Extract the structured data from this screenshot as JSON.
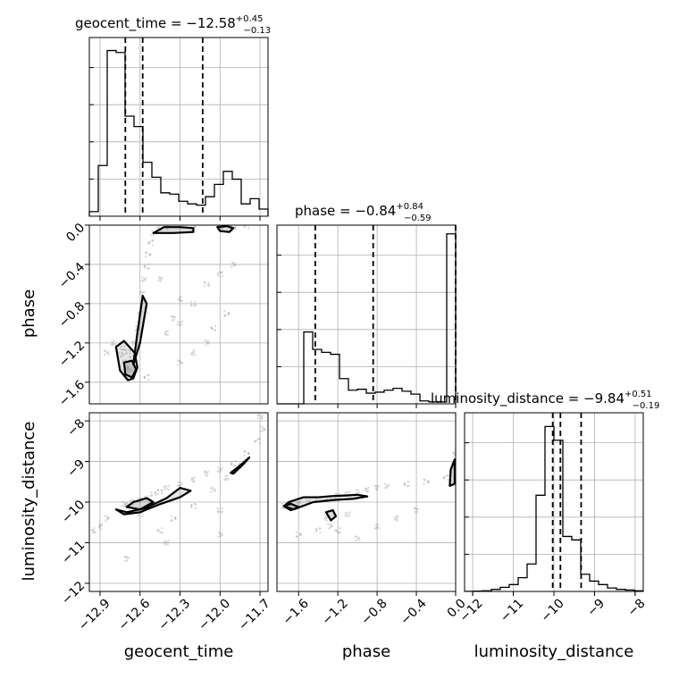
{
  "chart_data": {
    "type": "corner",
    "params": [
      {
        "name": "geocent_time",
        "label": "geocent_time",
        "title": "geocent_time = −12.58",
        "median": -12.58,
        "plus": "+0.45",
        "minus": "−0.13",
        "quantiles": [
          -12.71,
          -12.58,
          -12.13
        ],
        "range": [
          -12.98,
          -11.64
        ],
        "ticks": [
          -12.9,
          -12.6,
          -12.3,
          -12.0,
          -11.7
        ],
        "tick_labels": [
          "−12.9",
          "−12.6",
          "−12.3",
          "−12.0",
          "−11.7"
        ],
        "hist_edges": [
          -12.98,
          -12.913,
          -12.846,
          -12.779,
          -12.712,
          -12.645,
          -12.578,
          -12.511,
          -12.444,
          -12.377,
          -12.31,
          -12.243,
          -12.176,
          -12.109,
          -12.042,
          -11.975,
          -11.908,
          -11.841,
          -11.774,
          -11.707,
          -11.64
        ],
        "hist_counts": [
          0.7,
          7.8,
          25.5,
          25.2,
          15.4,
          13.8,
          8.3,
          6.0,
          3.6,
          3.4,
          2.3,
          1.9,
          1.7,
          3.0,
          4.9,
          6.9,
          5.7,
          1.9,
          2.7,
          1.1
        ],
        "hist_ymax": 27.5
      },
      {
        "name": "phase",
        "label": "phase",
        "title": "phase = −0.84",
        "median": -0.84,
        "plus": "+0.84",
        "minus": "−0.59",
        "quantiles": [
          -1.43,
          -0.84,
          0.0
        ],
        "range": [
          -1.82,
          0.0
        ],
        "ticks": [
          -1.6,
          -1.2,
          -0.8,
          -0.4,
          0.0
        ],
        "tick_labels": [
          "−1.6",
          "−1.2",
          "−0.8",
          "−0.4",
          "0.0"
        ],
        "hist_edges": [
          -1.82,
          -1.729,
          -1.638,
          -1.547,
          -1.456,
          -1.365,
          -1.274,
          -1.183,
          -1.092,
          -1.001,
          -0.91,
          -0.819,
          -0.728,
          -0.637,
          -0.546,
          -0.455,
          -0.364,
          -0.273,
          -0.182,
          -0.091,
          0.0
        ],
        "hist_counts": [
          0,
          0,
          0,
          7.4,
          5.6,
          5.3,
          5.1,
          2.6,
          1.4,
          1.5,
          1.1,
          1.2,
          1.4,
          1.6,
          1.3,
          1.0,
          0.3,
          0.2,
          0.2,
          17.5
        ],
        "hist_ymax": 18.4
      },
      {
        "name": "luminosity_distance",
        "label": "luminosity_distance",
        "title": "luminosity_distance = −9.84",
        "median": -9.84,
        "plus": "+0.51",
        "minus": "−0.19",
        "quantiles": [
          -10.03,
          -9.84,
          -9.33
        ],
        "range": [
          -12.2,
          -7.8
        ],
        "ticks": [
          -12,
          -11,
          -10,
          -9,
          -8
        ],
        "tick_labels": [
          "−12",
          "−11",
          "−10",
          "−9",
          "−8"
        ],
        "hist_edges": [
          -12.2,
          -11.98,
          -11.76,
          -11.54,
          -11.32,
          -11.1,
          -10.88,
          -10.66,
          -10.44,
          -10.22,
          -10.0,
          -9.78,
          -9.56,
          -9.34,
          -9.12,
          -8.9,
          -8.68,
          -8.46,
          -8.24,
          -8.02,
          -7.8
        ],
        "hist_counts": [
          0.02,
          0.05,
          0.1,
          0.3,
          0.6,
          1.0,
          2.0,
          4.0,
          14.0,
          24.0,
          22.0,
          8.0,
          7.5,
          2.5,
          1.5,
          1.0,
          0.5,
          0.3,
          0.2,
          0.1
        ],
        "hist_ymax": 26
      }
    ],
    "pairs": [
      {
        "x": "geocent_time",
        "y": "phase",
        "samples": [
          [
            -12.68,
            -1.47
          ],
          [
            -12.7,
            -1.45
          ],
          [
            -12.72,
            -1.4
          ],
          [
            -12.74,
            -1.32
          ],
          [
            -12.73,
            -1.25
          ],
          [
            -12.69,
            -1.29
          ],
          [
            -12.66,
            -1.36
          ],
          [
            -12.64,
            -1.2
          ],
          [
            -12.62,
            -1.05
          ],
          [
            -12.6,
            -0.9
          ],
          [
            -12.58,
            -0.7
          ],
          [
            -12.57,
            -0.55
          ],
          [
            -12.55,
            -0.42
          ],
          [
            -12.54,
            -0.3
          ],
          [
            -12.52,
            -0.18
          ],
          [
            -12.5,
            -0.08
          ],
          [
            -12.46,
            -0.03
          ],
          [
            -12.4,
            -0.02
          ],
          [
            -12.2,
            -0.02
          ],
          [
            -12.0,
            -0.01
          ],
          [
            -11.9,
            -0.03
          ],
          [
            -11.8,
            -0.01
          ],
          [
            -12.85,
            -1.3
          ],
          [
            -12.8,
            -1.2
          ],
          [
            -12.4,
            -1.1
          ],
          [
            -12.35,
            -0.95
          ],
          [
            -12.3,
            -1.0
          ],
          [
            -12.2,
            -0.8
          ],
          [
            -12.1,
            -0.6
          ],
          [
            -12.0,
            -0.5
          ],
          [
            -11.9,
            -0.4
          ],
          [
            -12.3,
            -0.75
          ],
          [
            -12.45,
            -0.55
          ],
          [
            -12.1,
            -1.2
          ],
          [
            -12.05,
            -1.05
          ],
          [
            -11.95,
            -0.9
          ],
          [
            -12.55,
            -1.55
          ],
          [
            -12.3,
            -1.4
          ],
          [
            -12.2,
            -1.3
          ]
        ],
        "contours": [
          {
            "x": [
              -12.78,
              -12.72,
              -12.64,
              -12.62,
              -12.65,
              -12.69,
              -12.75,
              -12.78
            ],
            "y": [
              -1.24,
              -1.18,
              -1.3,
              -1.45,
              -1.56,
              -1.58,
              -1.48,
              -1.24
            ]
          },
          {
            "x": [
              -12.72,
              -12.66,
              -12.63,
              -12.66,
              -12.71
            ],
            "y": [
              -1.4,
              -1.38,
              -1.47,
              -1.55,
              -1.52
            ]
          },
          {
            "x": [
              -12.65,
              -12.62,
              -12.58,
              -12.55,
              -12.6,
              -12.65
            ],
            "y": [
              -1.42,
              -1.1,
              -0.72,
              -0.8,
              -1.2,
              -1.42
            ]
          },
          {
            "x": [
              -12.5,
              -12.42,
              -12.3,
              -12.2,
              -12.2,
              -12.35,
              -12.5
            ],
            "y": [
              -0.08,
              -0.02,
              -0.02,
              -0.03,
              -0.07,
              -0.08,
              -0.08
            ]
          },
          {
            "x": [
              -12.02,
              -11.95,
              -11.9,
              -11.93,
              -12.0,
              -12.02
            ],
            "y": [
              -0.02,
              -0.01,
              -0.03,
              -0.07,
              -0.06,
              -0.02
            ]
          }
        ]
      },
      {
        "x": "geocent_time",
        "y": "luminosity_distance",
        "samples": [
          [
            -12.72,
            -10.05
          ],
          [
            -12.7,
            -10.08
          ],
          [
            -12.66,
            -10.0
          ],
          [
            -12.6,
            -9.95
          ],
          [
            -12.55,
            -9.9
          ],
          [
            -12.5,
            -9.8
          ],
          [
            -12.45,
            -9.75
          ],
          [
            -12.4,
            -9.65
          ],
          [
            -12.3,
            -9.55
          ],
          [
            -12.2,
            -9.45
          ],
          [
            -12.1,
            -9.3
          ],
          [
            -12.0,
            -9.2
          ],
          [
            -11.9,
            -9.05
          ],
          [
            -11.8,
            -8.8
          ],
          [
            -11.72,
            -8.5
          ],
          [
            -11.68,
            -8.2
          ],
          [
            -12.95,
            -10.7
          ],
          [
            -12.9,
            -10.6
          ],
          [
            -12.85,
            -10.4
          ],
          [
            -12.45,
            -10.7
          ],
          [
            -12.35,
            -10.4
          ],
          [
            -12.2,
            -10.1
          ],
          [
            -12.05,
            -9.7
          ],
          [
            -11.95,
            -9.4
          ],
          [
            -11.85,
            -9.1
          ],
          [
            -12.7,
            -11.4
          ],
          [
            -12.4,
            -11.0
          ],
          [
            -12.0,
            -10.2
          ],
          [
            -11.7,
            -7.9
          ],
          [
            -12.6,
            -10.3
          ],
          [
            -12.0,
            -10.8
          ]
        ],
        "contours": [
          {
            "x": [
              -12.78,
              -12.7,
              -12.56,
              -12.4,
              -12.3,
              -12.22,
              -12.3,
              -12.45,
              -12.6,
              -12.72,
              -12.78
            ],
            "y": [
              -10.18,
              -10.25,
              -10.15,
              -9.9,
              -9.65,
              -9.72,
              -9.88,
              -10.05,
              -10.25,
              -10.3,
              -10.18
            ]
          },
          {
            "x": [
              -12.7,
              -12.6,
              -12.5,
              -12.55,
              -12.65,
              -12.7
            ],
            "y": [
              -10.12,
              -10.18,
              -10.0,
              -9.9,
              -10.0,
              -10.12
            ]
          },
          {
            "x": [
              -11.9,
              -11.82,
              -11.78,
              -11.85,
              -11.92,
              -11.9
            ],
            "y": [
              -9.3,
              -9.05,
              -8.9,
              -9.1,
              -9.28,
              -9.3
            ]
          }
        ]
      },
      {
        "x": "phase",
        "y": "luminosity_distance",
        "samples": [
          [
            -1.75,
            -10.1
          ],
          [
            -1.7,
            -10.08
          ],
          [
            -1.6,
            -10.05
          ],
          [
            -1.5,
            -10.0
          ],
          [
            -1.4,
            -9.95
          ],
          [
            -1.3,
            -9.9
          ],
          [
            -1.2,
            -9.85
          ],
          [
            -1.1,
            -9.8
          ],
          [
            -1.0,
            -9.75
          ],
          [
            -0.9,
            -9.7
          ],
          [
            -0.8,
            -9.65
          ],
          [
            -0.7,
            -9.6
          ],
          [
            -0.5,
            -9.55
          ],
          [
            -0.3,
            -9.5
          ],
          [
            -0.1,
            -9.4
          ],
          [
            -0.02,
            -9.1
          ],
          [
            -0.01,
            -8.8
          ],
          [
            -1.32,
            -10.4
          ],
          [
            -1.28,
            -10.6
          ],
          [
            -1.2,
            -10.7
          ],
          [
            -1.6,
            -10.8
          ],
          [
            -1.4,
            -10.7
          ],
          [
            -1.0,
            -10.9
          ],
          [
            -0.8,
            -10.6
          ],
          [
            -0.6,
            -10.4
          ],
          [
            -0.4,
            -10.2
          ],
          [
            -1.1,
            -10.3
          ]
        ],
        "contours": [
          {
            "x": [
              -1.75,
              -1.7,
              -1.55,
              -1.4,
              -1.25,
              -1.15,
              -1.0,
              -0.9,
              -1.05,
              -1.25,
              -1.45,
              -1.65,
              -1.75
            ],
            "y": [
              -10.1,
              -10.0,
              -9.88,
              -9.88,
              -9.85,
              -9.84,
              -9.82,
              -9.86,
              -9.92,
              -9.95,
              -10.0,
              -10.18,
              -10.1
            ]
          },
          {
            "x": [
              -1.75,
              -1.68,
              -1.6,
              -1.68,
              -1.75
            ],
            "y": [
              -10.1,
              -10.04,
              -10.12,
              -10.2,
              -10.1
            ]
          },
          {
            "x": [
              -1.32,
              -1.25,
              -1.22,
              -1.27,
              -1.32
            ],
            "y": [
              -10.25,
              -10.2,
              -10.35,
              -10.45,
              -10.25
            ]
          },
          {
            "x": [
              -0.06,
              -0.01,
              -0.01,
              -0.05,
              -0.06
            ],
            "y": [
              -9.6,
              -9.55,
              -8.95,
              -9.2,
              -9.6
            ]
          }
        ]
      }
    ],
    "grid": true,
    "linestyle_quantiles": "dashed"
  }
}
